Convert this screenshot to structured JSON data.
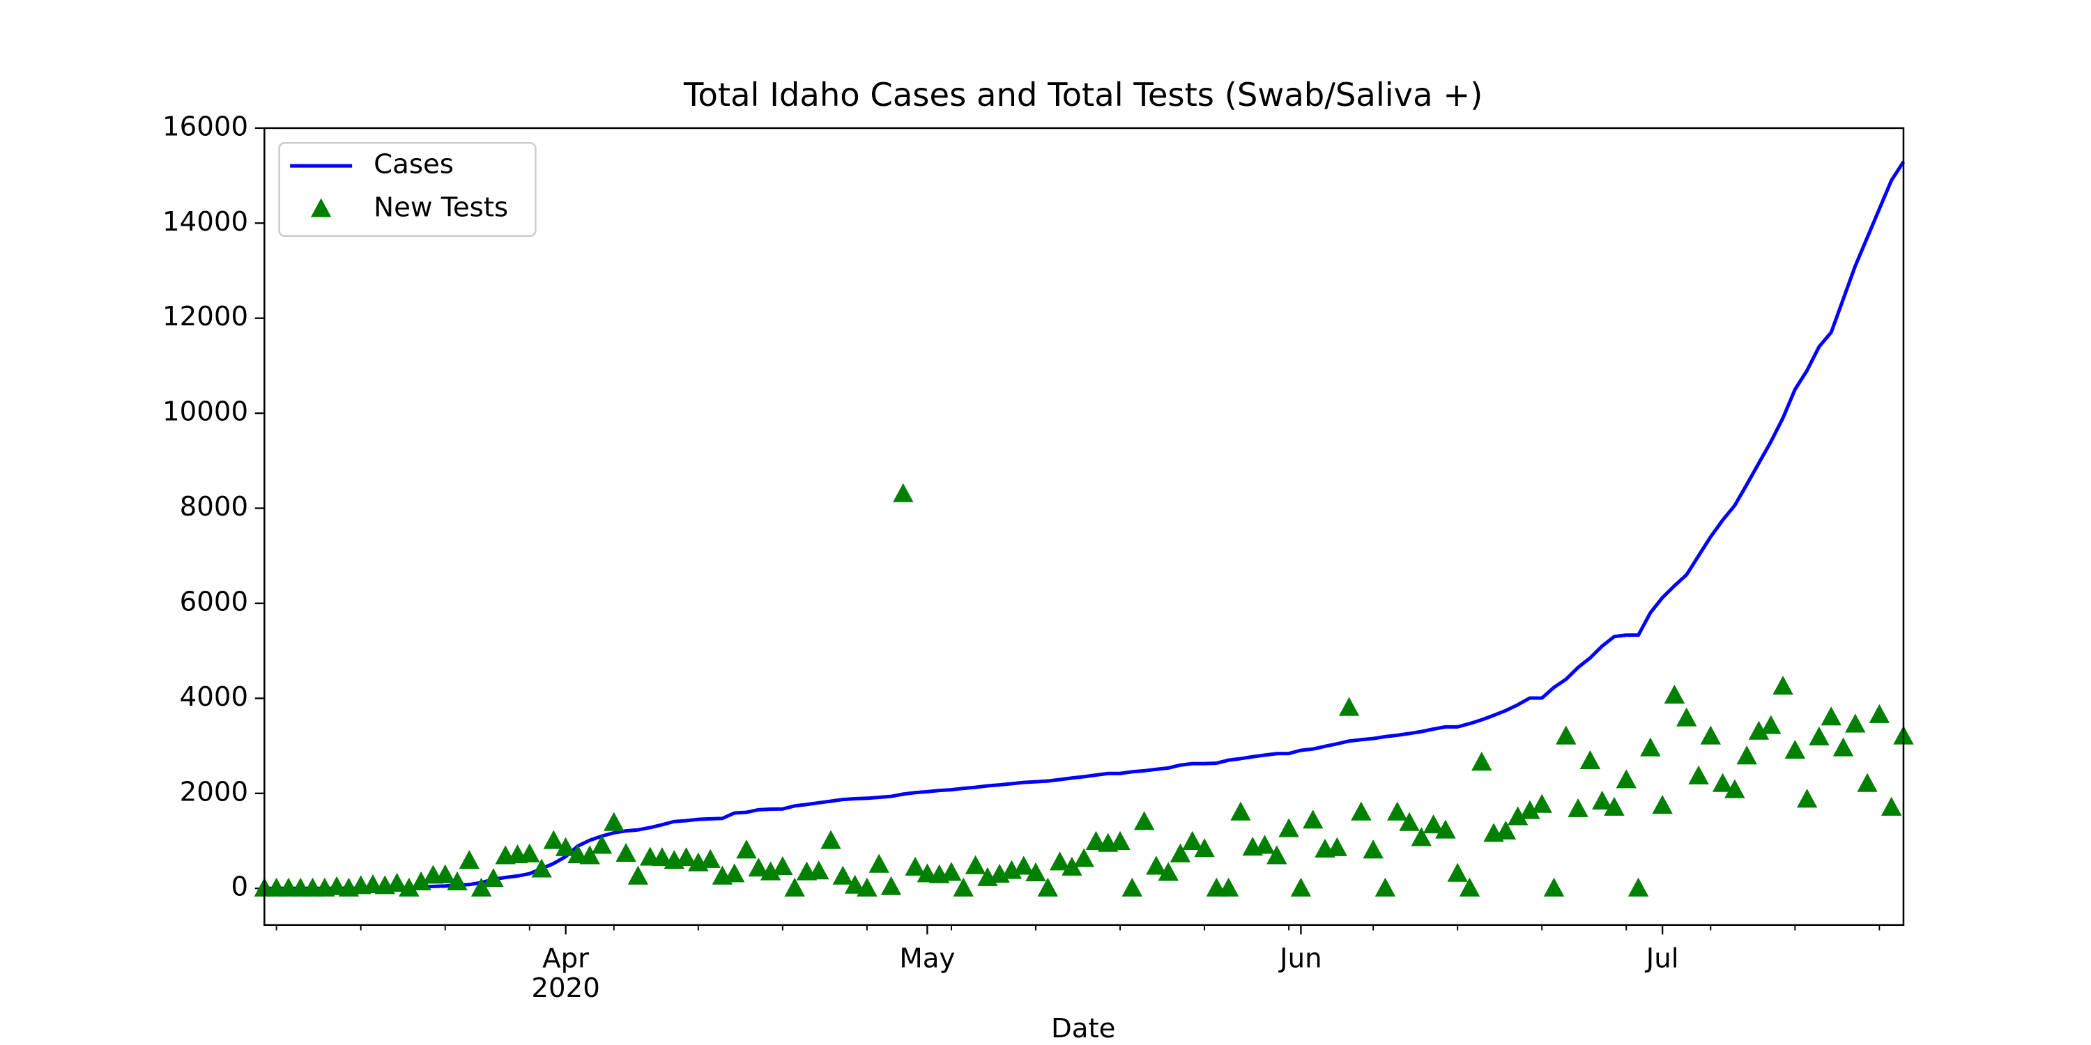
{
  "chart_data": {
    "type": "line-scatter",
    "title": "Total Idaho Cases and Total Tests (Swab/Saliva +)",
    "x_label": "Date",
    "x_year_label": "2020",
    "legend": "upper left",
    "xlim": [
      "2020-03-07",
      "2020-07-21"
    ],
    "xticks": [
      {
        "value": "2020-04-01",
        "label": "Apr"
      },
      {
        "value": "2020-05-01",
        "label": "May"
      },
      {
        "value": "2020-06-01",
        "label": "Jun"
      },
      {
        "value": "2020-07-01",
        "label": "Jul"
      }
    ],
    "xminorticks": [
      "2020-03-08",
      "2020-03-15",
      "2020-03-22",
      "2020-03-29",
      "2020-04-05",
      "2020-04-12",
      "2020-04-19",
      "2020-04-26",
      "2020-05-03",
      "2020-05-10",
      "2020-05-17",
      "2020-05-24",
      "2020-05-31",
      "2020-06-07",
      "2020-06-14",
      "2020-06-21",
      "2020-06-28",
      "2020-07-05",
      "2020-07-12",
      "2020-07-19"
    ],
    "ylim": [
      -770,
      16000
    ],
    "yticks": [
      0,
      2000,
      4000,
      6000,
      8000,
      10000,
      12000,
      14000,
      16000
    ],
    "x": [
      "2020-03-07",
      "2020-03-08",
      "2020-03-09",
      "2020-03-10",
      "2020-03-11",
      "2020-03-12",
      "2020-03-13",
      "2020-03-14",
      "2020-03-15",
      "2020-03-16",
      "2020-03-17",
      "2020-03-18",
      "2020-03-19",
      "2020-03-20",
      "2020-03-21",
      "2020-03-22",
      "2020-03-23",
      "2020-03-24",
      "2020-03-25",
      "2020-03-26",
      "2020-03-27",
      "2020-03-28",
      "2020-03-29",
      "2020-03-30",
      "2020-03-31",
      "2020-04-01",
      "2020-04-02",
      "2020-04-03",
      "2020-04-04",
      "2020-04-05",
      "2020-04-06",
      "2020-04-07",
      "2020-04-08",
      "2020-04-09",
      "2020-04-10",
      "2020-04-11",
      "2020-04-12",
      "2020-04-13",
      "2020-04-14",
      "2020-04-15",
      "2020-04-16",
      "2020-04-17",
      "2020-04-18",
      "2020-04-19",
      "2020-04-20",
      "2020-04-21",
      "2020-04-22",
      "2020-04-23",
      "2020-04-24",
      "2020-04-25",
      "2020-04-26",
      "2020-04-27",
      "2020-04-28",
      "2020-04-29",
      "2020-04-30",
      "2020-05-01",
      "2020-05-02",
      "2020-05-03",
      "2020-05-04",
      "2020-05-05",
      "2020-05-06",
      "2020-05-07",
      "2020-05-08",
      "2020-05-09",
      "2020-05-10",
      "2020-05-11",
      "2020-05-12",
      "2020-05-13",
      "2020-05-14",
      "2020-05-15",
      "2020-05-16",
      "2020-05-17",
      "2020-05-18",
      "2020-05-19",
      "2020-05-20",
      "2020-05-21",
      "2020-05-22",
      "2020-05-23",
      "2020-05-24",
      "2020-05-25",
      "2020-05-26",
      "2020-05-27",
      "2020-05-28",
      "2020-05-29",
      "2020-05-30",
      "2020-05-31",
      "2020-06-01",
      "2020-06-02",
      "2020-06-03",
      "2020-06-04",
      "2020-06-05",
      "2020-06-06",
      "2020-06-07",
      "2020-06-08",
      "2020-06-09",
      "2020-06-10",
      "2020-06-11",
      "2020-06-12",
      "2020-06-13",
      "2020-06-14",
      "2020-06-15",
      "2020-06-16",
      "2020-06-17",
      "2020-06-18",
      "2020-06-19",
      "2020-06-20",
      "2020-06-21",
      "2020-06-22",
      "2020-06-23",
      "2020-06-24",
      "2020-06-25",
      "2020-06-26",
      "2020-06-27",
      "2020-06-28",
      "2020-06-29",
      "2020-06-30",
      "2020-07-01",
      "2020-07-02",
      "2020-07-03",
      "2020-07-04",
      "2020-07-05",
      "2020-07-06",
      "2020-07-07",
      "2020-07-08",
      "2020-07-09",
      "2020-07-10",
      "2020-07-11",
      "2020-07-12",
      "2020-07-13",
      "2020-07-14",
      "2020-07-15",
      "2020-07-16",
      "2020-07-17",
      "2020-07-18",
      "2020-07-19",
      "2020-07-20",
      "2020-07-21"
    ],
    "series": [
      {
        "name": "Cases",
        "color": "#0000ff",
        "style": "line",
        "values": [
          0,
          0,
          0,
          0,
          0,
          0,
          1,
          2,
          5,
          8,
          9,
          11,
          23,
          31,
          42,
          50,
          68,
          81,
          123,
          189,
          230,
          261,
          310,
          415,
          525,
          669,
          891,
          1013,
          1101,
          1170,
          1210,
          1232,
          1280,
          1340,
          1407,
          1426,
          1453,
          1464,
          1473,
          1587,
          1602,
          1655,
          1668,
          1672,
          1736,
          1766,
          1802,
          1836,
          1870,
          1887,
          1897,
          1917,
          1936,
          1984,
          2015,
          2035,
          2061,
          2076,
          2106,
          2127,
          2158,
          2178,
          2205,
          2230,
          2245,
          2260,
          2290,
          2324,
          2351,
          2386,
          2419,
          2419,
          2455,
          2476,
          2506,
          2534,
          2595,
          2626,
          2626,
          2636,
          2699,
          2731,
          2770,
          2806,
          2836,
          2839,
          2906,
          2933,
          2990,
          3043,
          3101,
          3130,
          3153,
          3194,
          3223,
          3260,
          3300,
          3353,
          3399,
          3399,
          3467,
          3548,
          3641,
          3743,
          3865,
          4006,
          4006,
          4230,
          4400,
          4650,
          4850,
          5100,
          5300,
          5330,
          5330,
          5800,
          6120,
          6370,
          6600,
          7000,
          7400,
          7750,
          8060,
          8500,
          8950,
          9400,
          9900,
          10500,
          10900,
          11400,
          11700,
          12400,
          13100,
          13700,
          14300,
          14900,
          15290
        ]
      },
      {
        "name": "New Tests",
        "color": "#008000",
        "style": "triangle",
        "values": [
          0,
          0,
          0,
          0,
          0,
          0,
          30,
          0,
          50,
          70,
          50,
          100,
          0,
          130,
          270,
          280,
          130,
          580,
          0,
          200,
          680,
          700,
          720,
          400,
          1000,
          850,
          700,
          680,
          900,
          1380,
          730,
          250,
          650,
          640,
          580,
          640,
          530,
          600,
          250,
          300,
          800,
          420,
          340,
          450,
          0,
          340,
          360,
          1000,
          250,
          60,
          0,
          500,
          30,
          8300,
          440,
          300,
          280,
          330,
          0,
          470,
          220,
          290,
          370,
          460,
          320,
          0,
          550,
          440,
          620,
          980,
          940,
          980,
          0,
          1400,
          460,
          330,
          720,
          980,
          830,
          0,
          0,
          1600,
          860,
          900,
          680,
          1250,
          0,
          1430,
          820,
          850,
          3800,
          1600,
          800,
          0,
          1600,
          1380,
          1060,
          1330,
          1220,
          310,
          0,
          2650,
          1150,
          1200,
          1500,
          1630,
          1760,
          0,
          3200,
          1670,
          2680,
          1830,
          1700,
          2280,
          0,
          2950,
          1740,
          4060,
          3580,
          2360,
          3200,
          2200,
          2070,
          2780,
          3300,
          3420,
          4250,
          2900,
          1870,
          3180,
          3600,
          2950,
          3450,
          2200,
          3650,
          1700,
          3200
        ]
      }
    ]
  }
}
